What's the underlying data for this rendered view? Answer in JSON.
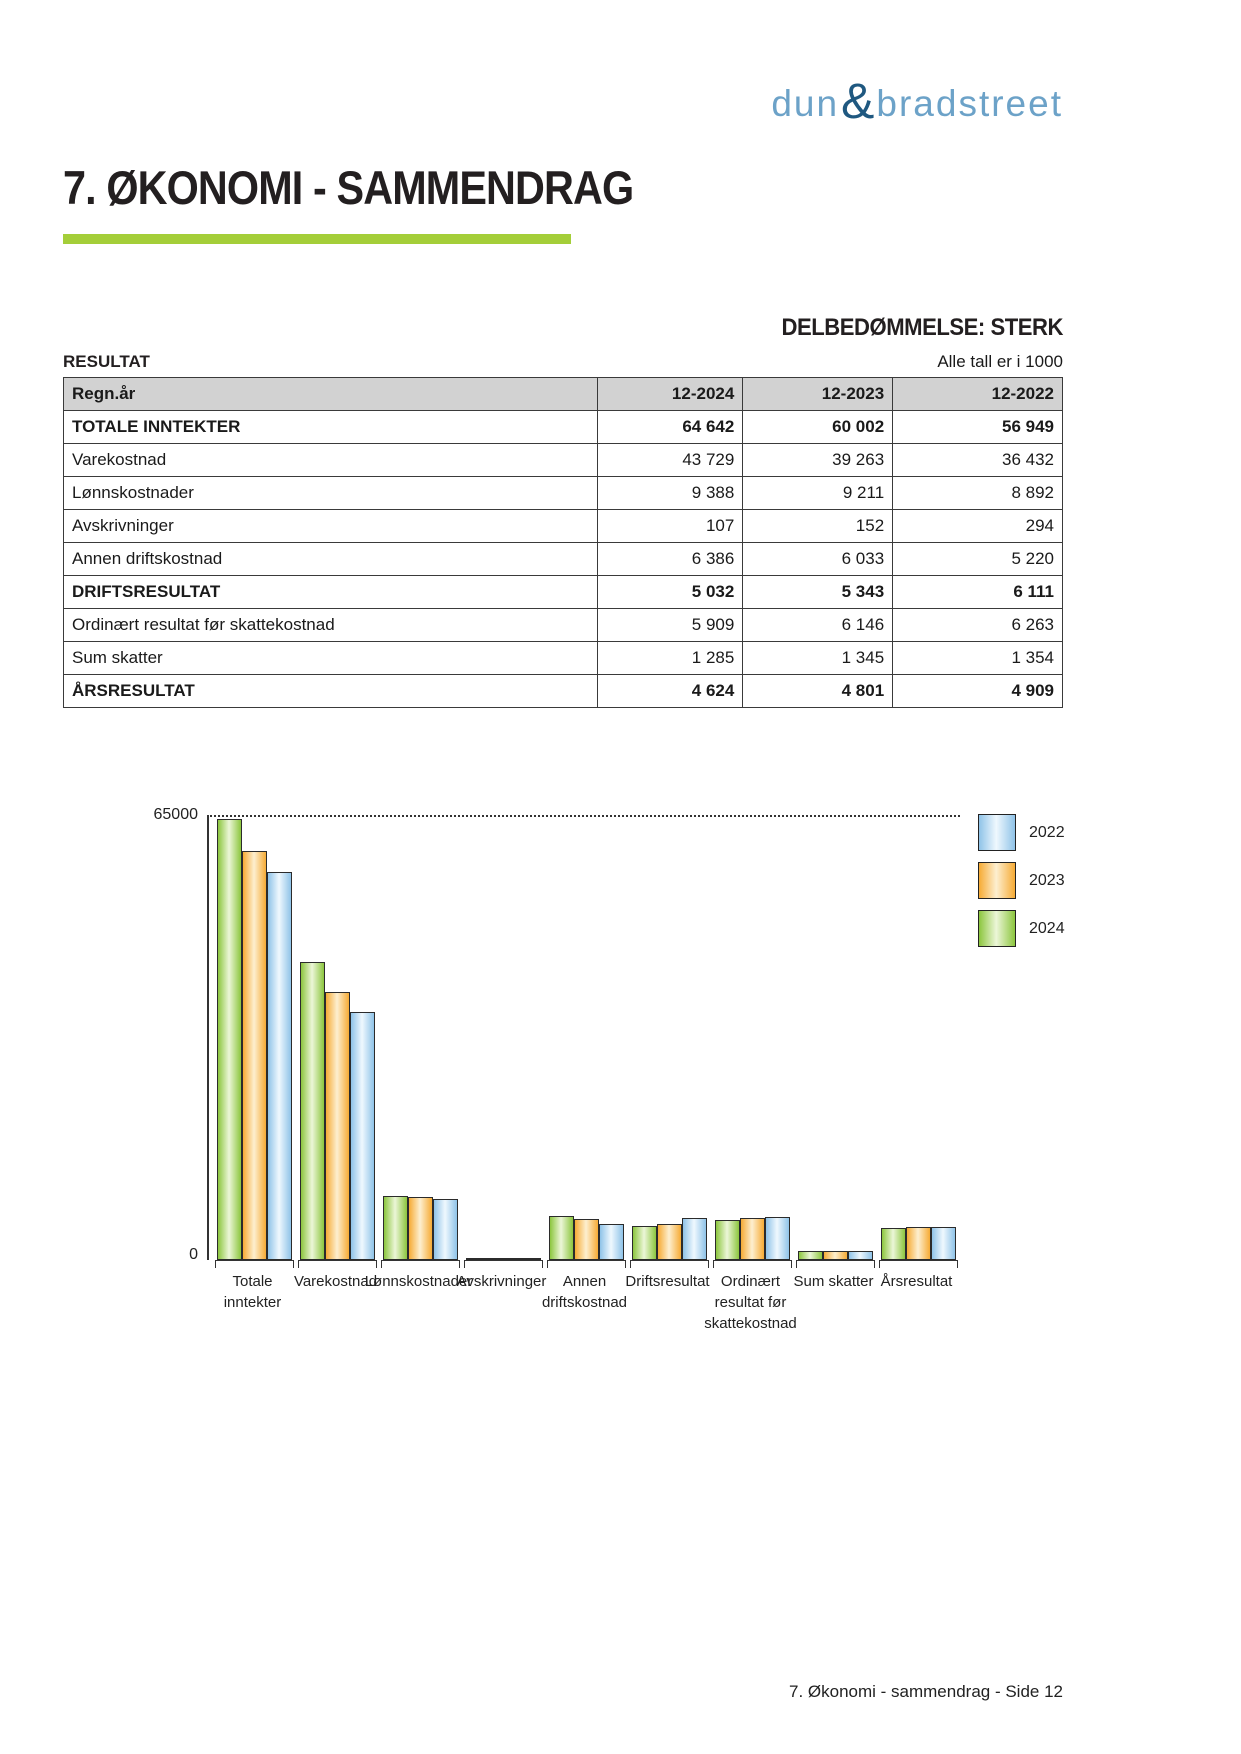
{
  "logo": {
    "part1": "dun",
    "amp": "&",
    "part2": "bradstreet"
  },
  "page": {
    "title": "7. ØKONOMI - SAMMENDRAG",
    "assessment": "DELBEDØMMELSE: STERK",
    "section_label": "RESULTAT",
    "units_note": "Alle tall er i 1000",
    "footer": "7. Økonomi - sammendrag - Side 12"
  },
  "colors": {
    "accent_green_rule": "#a4ce39",
    "logo_words": "#6ca2c8",
    "logo_ampersand": "#1f5880",
    "table_header_bg": "#d2d2d2"
  },
  "table": {
    "header": [
      "Regn.år",
      "12-2024",
      "12-2023",
      "12-2022"
    ],
    "rows": [
      {
        "label": "TOTALE INNTEKTER",
        "values": [
          "64 642",
          "60 002",
          "56 949"
        ],
        "bold": true
      },
      {
        "label": "Varekostnad",
        "values": [
          "43 729",
          "39 263",
          "36 432"
        ],
        "bold": false
      },
      {
        "label": "Lønnskostnader",
        "values": [
          "9 388",
          "9 211",
          "8 892"
        ],
        "bold": false
      },
      {
        "label": "Avskrivninger",
        "values": [
          "107",
          "152",
          "294"
        ],
        "bold": false
      },
      {
        "label": "Annen driftskostnad",
        "values": [
          "6 386",
          "6 033",
          "5 220"
        ],
        "bold": false
      },
      {
        "label": "DRIFTSRESULTAT",
        "values": [
          "5 032",
          "5 343",
          "6 111"
        ],
        "bold": true
      },
      {
        "label": "Ordinært resultat før skattekostnad",
        "values": [
          "5 909",
          "6 146",
          "6 263"
        ],
        "bold": false
      },
      {
        "label": "Sum skatter",
        "values": [
          "1 285",
          "1 345",
          "1 354"
        ],
        "bold": false
      },
      {
        "label": "ÅRSRESULTAT",
        "values": [
          "4 624",
          "4 801",
          "4 909"
        ],
        "bold": true
      }
    ]
  },
  "chart_data": {
    "type": "bar",
    "title": "",
    "xlabel": "",
    "ylabel": "",
    "ylim": [
      0,
      65000
    ],
    "ytick_labels": {
      "top": "65000",
      "bottom": "0"
    },
    "grid": "single dotted line at 65000",
    "legend_position": "right",
    "categories": [
      "Totale inntekter",
      "Varekostnad",
      "Lønnskostnader",
      "Avskrivninger",
      "Annen driftskostnad",
      "Driftsresultat",
      "Ordinært resultat før skattekostnad",
      "Sum skatter",
      "Årsresultat"
    ],
    "category_label_lines": [
      [
        "Totale",
        "inntekter"
      ],
      [
        "Varekostnad"
      ],
      [
        "Lønnskostnader"
      ],
      [
        "Avskrivninger"
      ],
      [
        "Annen",
        "driftskostnad"
      ],
      [
        "Driftsresultat"
      ],
      [
        "Ordinært",
        "resultat før",
        "skattekostnad"
      ],
      [
        "Sum skatter"
      ],
      [
        "Årsresultat"
      ]
    ],
    "series": [
      {
        "name": "2024",
        "color_edge": "#8cc63e",
        "color_center": "#ecf6d8",
        "values": [
          64642,
          43729,
          9388,
          107,
          6386,
          5032,
          5909,
          1285,
          4624
        ]
      },
      {
        "name": "2023",
        "color_edge": "#f6ab35",
        "color_center": "#fdefd0",
        "values": [
          60002,
          39263,
          9211,
          152,
          6033,
          5343,
          6146,
          1345,
          4801
        ]
      },
      {
        "name": "2022",
        "color_edge": "#8fc3e8",
        "color_center": "#eff8fe",
        "values": [
          56949,
          36432,
          8892,
          294,
          5220,
          6111,
          6263,
          1354,
          4909
        ]
      }
    ],
    "legend": [
      {
        "label": "2022",
        "color_edge": "#8fc3e8",
        "color_center": "#eff8fe"
      },
      {
        "label": "2023",
        "color_edge": "#f6ab35",
        "color_center": "#fdefd0"
      },
      {
        "label": "2024",
        "color_edge": "#8cc63e",
        "color_center": "#ecf6d8"
      }
    ]
  }
}
